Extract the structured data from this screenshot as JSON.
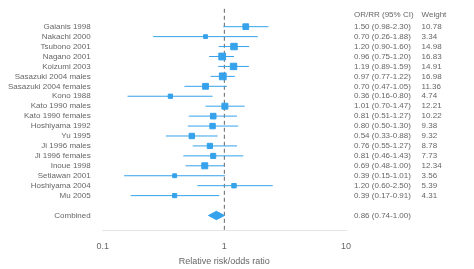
{
  "chart_data": {
    "type": "forest",
    "xlabel": "Relative risk/odds ratio",
    "headers": [
      "OR/RR (95% CI)",
      "Weight"
    ],
    "categories": [
      "Gaianis 1998",
      "Nakachi 2000",
      "Tsubono 2001",
      "Nagano 2001",
      "Koizumi 2003",
      "Sasazuki 2004 males",
      "Sasazuki 2004 females",
      "Kono 1988",
      "Kato 1990 males",
      "Kato 1990 females",
      "Hoshiyama 1992",
      "Yu 1995",
      "Ji 1996 males",
      "Ji 1996 females",
      "Inoue 1998",
      "Setiawan 2001",
      "Hoshiyama 2004",
      "Mu 2005",
      "Combined"
    ],
    "values": [
      1.5,
      0.7,
      1.2,
      0.96,
      1.19,
      0.97,
      0.7,
      0.36,
      1.01,
      0.81,
      0.8,
      0.54,
      0.76,
      0.81,
      0.69,
      0.39,
      1.2,
      0.39,
      0.86
    ],
    "value_labels": [
      "1.50 (0.98-2.30)",
      "0.70 (0.26-1.88)",
      "1.20 (0.90-1.60)",
      "0.96 (0.75-1.20)",
      "1.19 (0.89-1.59)",
      "0.97 (0.77-1.22)",
      "0.70 (0.47-1.05)",
      "0.36 (0.16-0.80)",
      "1.01 (0.70-1.47)",
      "0.81 (0.51-1.27)",
      "0.80 (0.50-1.30)",
      "0.54 (0.33-0.88)",
      "0.76 (0.55-1.27)",
      "0.81 (0.46-1.43)",
      "0.69 (0.48-1.00)",
      "0.39 (0.15-1.01)",
      "1.20 (0.60-2.50)",
      "0.39 (0.17-0.91)",
      "0.86 (0.74-1.00)"
    ],
    "ci_low": [
      0.98,
      0.26,
      0.9,
      0.75,
      0.89,
      0.77,
      0.47,
      0.16,
      0.7,
      0.51,
      0.5,
      0.33,
      0.55,
      0.46,
      0.48,
      0.15,
      0.6,
      0.17,
      0.74
    ],
    "ci_high": [
      2.3,
      1.88,
      1.6,
      1.2,
      1.59,
      1.22,
      1.05,
      0.8,
      1.47,
      1.27,
      1.3,
      0.88,
      1.27,
      1.43,
      1.0,
      1.01,
      2.5,
      0.91,
      1.0
    ],
    "weight": [
      10.78,
      3.34,
      14.98,
      16.83,
      14.91,
      16.98,
      11.36,
      4.74,
      12.21,
      10.22,
      9.38,
      9.32,
      8.78,
      7.73,
      12.34,
      3.56,
      5.39,
      4.31,
      null
    ],
    "vline": 1,
    "log": "x",
    "xlim": [
      0.1,
      10
    ],
    "xticks": [
      0.1,
      1,
      10
    ],
    "grid": false,
    "color": "#36a2eb"
  }
}
